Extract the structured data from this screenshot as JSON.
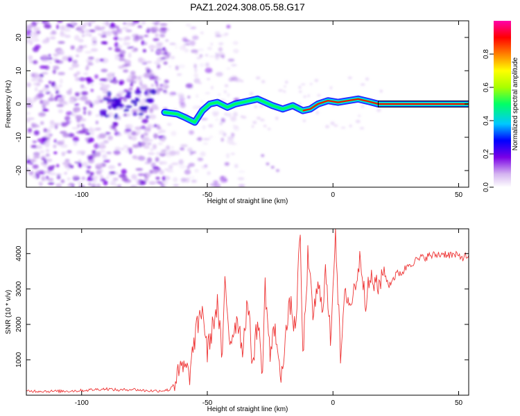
{
  "title": "PAZ1.2024.308.05.58.G17",
  "chart_data": [
    {
      "type": "heatmap",
      "xlabel": "Height of straight line (km)",
      "ylabel": "Frequency (Hz)",
      "xlim": [
        -122,
        54
      ],
      "ylim": [
        -25,
        25
      ],
      "xticks": [
        -100,
        -50,
        0,
        50
      ],
      "yticks": [
        -20,
        -10,
        0,
        10,
        20
      ],
      "colorbar": {
        "label": "Normalized spectral amplitude",
        "range": [
          0,
          1
        ],
        "ticks": [
          "0.0",
          "0.2",
          "0.4",
          "0.6",
          "0.8"
        ],
        "colormap": [
          "#ffffff",
          "#d4b3f0",
          "#7a00e6",
          "#0000ff",
          "#00c8ff",
          "#00ff66",
          "#a8ff00",
          "#ffff00",
          "#ff8000",
          "#ff0000",
          "#ff00aa"
        ]
      },
      "ridge": [
        {
          "x": -67,
          "y": -2.5
        },
        {
          "x": -62,
          "y": -3
        },
        {
          "x": -59,
          "y": -4
        },
        {
          "x": -55,
          "y": -5.5
        },
        {
          "x": -52,
          "y": -2
        },
        {
          "x": -49,
          "y": 0
        },
        {
          "x": -46,
          "y": 0.5
        },
        {
          "x": -42,
          "y": -1
        },
        {
          "x": -39,
          "y": 0
        },
        {
          "x": -36,
          "y": 0.5
        },
        {
          "x": -33,
          "y": 1
        },
        {
          "x": -30,
          "y": 1.5
        },
        {
          "x": -27,
          "y": 0.5
        },
        {
          "x": -24,
          "y": -0.5
        },
        {
          "x": -20,
          "y": -1.5
        },
        {
          "x": -16,
          "y": -0.5
        },
        {
          "x": -12,
          "y": -2
        },
        {
          "x": -9,
          "y": -1.5
        },
        {
          "x": -6,
          "y": 0
        },
        {
          "x": -2,
          "y": 1
        },
        {
          "x": 2,
          "y": 0.5
        },
        {
          "x": 6,
          "y": 1
        },
        {
          "x": 10,
          "y": 1.5
        },
        {
          "x": 14,
          "y": 0.8
        },
        {
          "x": 18,
          "y": 0
        },
        {
          "x": 25,
          "y": 0
        },
        {
          "x": 35,
          "y": 0
        },
        {
          "x": 45,
          "y": 0
        },
        {
          "x": 54,
          "y": 0
        }
      ]
    },
    {
      "type": "line",
      "xlabel": "Height of straight line (km)",
      "ylabel": "SNR (10 * v/v)",
      "xlim": [
        -122,
        54
      ],
      "ylim": [
        0,
        4700
      ],
      "xticks": [
        -100,
        -50,
        0,
        50
      ],
      "yticks": [
        1000,
        2000,
        3000,
        4000
      ],
      "color": "#ee3333",
      "series": [
        {
          "values": [
            [
              -122,
              120
            ],
            [
              -110,
              110
            ],
            [
              -100,
              130
            ],
            [
              -95,
              160
            ],
            [
              -90,
              180
            ],
            [
              -85,
              140
            ],
            [
              -80,
              170
            ],
            [
              -75,
              130
            ],
            [
              -70,
              120
            ],
            [
              -65,
              150
            ],
            [
              -62,
              500
            ],
            [
              -60,
              800
            ],
            [
              -57,
              600
            ],
            [
              -55,
              1600
            ],
            [
              -52,
              2500
            ],
            [
              -50,
              1200
            ],
            [
              -48,
              1900
            ],
            [
              -46,
              2600
            ],
            [
              -44,
              1000
            ],
            [
              -43,
              3200
            ],
            [
              -41,
              1500
            ],
            [
              -38,
              2200
            ],
            [
              -36,
              1300
            ],
            [
              -34,
              2700
            ],
            [
              -32,
              900
            ],
            [
              -30,
              2100
            ],
            [
              -28,
              700
            ],
            [
              -27,
              3100
            ],
            [
              -25,
              1100
            ],
            [
              -23,
              2000
            ],
            [
              -21,
              400
            ],
            [
              -19,
              1600
            ],
            [
              -17,
              2600
            ],
            [
              -15,
              1800
            ],
            [
              -13,
              4600
            ],
            [
              -12,
              1000
            ],
            [
              -10,
              3900
            ],
            [
              -8,
              2300
            ],
            [
              -6,
              3000
            ],
            [
              -4,
              2600
            ],
            [
              -3,
              3500
            ],
            [
              -1,
              1600
            ],
            [
              1,
              4700
            ],
            [
              3,
              1000
            ],
            [
              5,
              3000
            ],
            [
              7,
              2500
            ],
            [
              9,
              3200
            ],
            [
              11,
              3900
            ],
            [
              13,
              2700
            ],
            [
              15,
              3300
            ],
            [
              18,
              3000
            ],
            [
              20,
              3600
            ],
            [
              22,
              3100
            ],
            [
              25,
              3400
            ],
            [
              28,
              3500
            ],
            [
              30,
              3700
            ],
            [
              33,
              3800
            ],
            [
              36,
              3900
            ],
            [
              40,
              3950
            ],
            [
              44,
              4000
            ],
            [
              48,
              3950
            ],
            [
              52,
              3900
            ],
            [
              54,
              3950
            ]
          ]
        }
      ]
    }
  ]
}
